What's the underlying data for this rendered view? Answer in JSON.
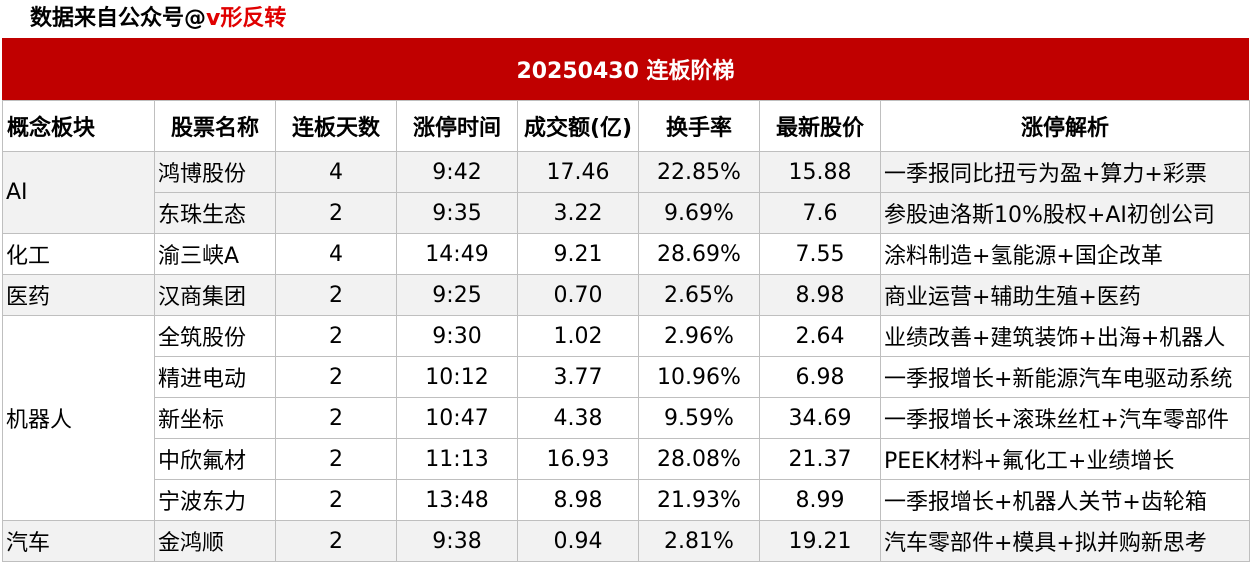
{
  "source": {
    "prefix": "数据来自公众号@",
    "handle": "v形反转"
  },
  "title": "20250430  连板阶梯",
  "headers": [
    "概念板块",
    "股票名称",
    "连板天数",
    "涨停时间",
    "成交额(亿)",
    "换手率",
    "最新股价",
    "涨停解析"
  ],
  "sectors": [
    {
      "name": "AI",
      "rows": [
        {
          "name": "鸿博股份",
          "days": "4",
          "time": "9:42",
          "amount": "17.46",
          "turnover": "22.85%",
          "price": "15.88",
          "reason": "一季报同比扭亏为盈+算力+彩票"
        },
        {
          "name": "东珠生态",
          "days": "2",
          "time": "9:35",
          "amount": "3.22",
          "turnover": "9.69%",
          "price": "7.6",
          "reason": "参股迪洛斯10%股权+AI初创公司"
        }
      ]
    },
    {
      "name": "化工",
      "rows": [
        {
          "name": "渝三峡A",
          "days": "4",
          "time": "14:49",
          "amount": "9.21",
          "turnover": "28.69%",
          "price": "7.55",
          "reason": "涂料制造+氢能源+国企改革"
        }
      ]
    },
    {
      "name": "医药",
      "rows": [
        {
          "name": "汉商集团",
          "days": "2",
          "time": "9:25",
          "amount": "0.70",
          "turnover": "2.65%",
          "price": "8.98",
          "reason": "商业运营+辅助生殖+医药"
        }
      ]
    },
    {
      "name": "机器人",
      "rows": [
        {
          "name": "全筑股份",
          "days": "2",
          "time": "9:30",
          "amount": "1.02",
          "turnover": "2.96%",
          "price": "2.64",
          "reason": "业绩改善+建筑装饰+出海+机器人"
        },
        {
          "name": "精进电动",
          "days": "2",
          "time": "10:12",
          "amount": "3.77",
          "turnover": "10.96%",
          "price": "6.98",
          "reason": "一季报增长+新能源汽车电驱动系统"
        },
        {
          "name": "新坐标",
          "days": "2",
          "time": "10:47",
          "amount": "4.38",
          "turnover": "9.59%",
          "price": "34.69",
          "reason": "一季报增长+滚珠丝杠+汽车零部件"
        },
        {
          "name": "中欣氟材",
          "days": "2",
          "time": "11:13",
          "amount": "16.93",
          "turnover": "28.08%",
          "price": "21.37",
          "reason": "PEEK材料+氟化工+业绩增长"
        },
        {
          "name": "宁波东力",
          "days": "2",
          "time": "13:48",
          "amount": "8.98",
          "turnover": "21.93%",
          "price": "8.99",
          "reason": "一季报增长+机器人关节+齿轮箱"
        }
      ]
    },
    {
      "name": "汽车",
      "rows": [
        {
          "name": "金鸿顺",
          "days": "2",
          "time": "9:38",
          "amount": "0.94",
          "turnover": "2.81%",
          "price": "19.21",
          "reason": "汽车零部件+模具+拟并购新思考"
        }
      ]
    }
  ]
}
